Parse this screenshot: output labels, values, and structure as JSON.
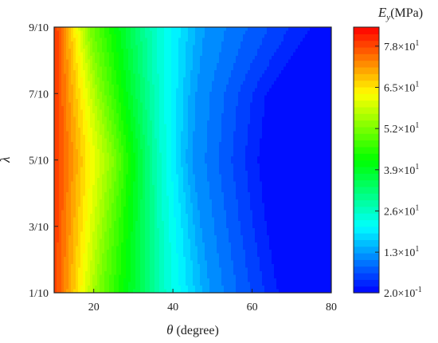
{
  "chart_data": {
    "type": "heatmap",
    "subtype": "filled-contour",
    "x": {
      "symbol": "θ",
      "unit_label": " (degree)",
      "range": [
        10,
        80
      ],
      "ticks": [
        20,
        40,
        60,
        80
      ],
      "tick_labels": [
        "20",
        "40",
        "60",
        "80"
      ]
    },
    "y": {
      "symbol": "λ",
      "range": [
        0.1,
        0.9
      ],
      "ticks": [
        0.1,
        0.3,
        0.5,
        0.7,
        0.9
      ],
      "tick_labels": [
        "1/10",
        "3/10",
        "5/10",
        "7/10",
        "9/10"
      ]
    },
    "z": {
      "symbol": "E",
      "subscript": "y",
      "unit": "(MPa)",
      "range": [
        0.2,
        84
      ],
      "colorbar_ticks": [
        0.2,
        13,
        26,
        39,
        52,
        65,
        78
      ],
      "colorbar_tick_labels": [
        {
          "mantissa": "2.0",
          "exponent": "-1"
        },
        {
          "mantissa": "1.3",
          "exponent": "1"
        },
        {
          "mantissa": "2.6",
          "exponent": "1"
        },
        {
          "mantissa": "3.9",
          "exponent": "1"
        },
        {
          "mantissa": "5.2",
          "exponent": "1"
        },
        {
          "mantissa": "6.5",
          "exponent": "1"
        },
        {
          "mantissa": "7.8",
          "exponent": "1"
        }
      ],
      "levels": 40,
      "colormap": [
        "#0000ff",
        "#00ffff",
        "#00ff00",
        "#ffff00",
        "#ff0000"
      ]
    },
    "contours": [
      {
        "level": 78,
        "points": [
          [
            10.5,
            0.1
          ],
          [
            11.2,
            0.5
          ],
          [
            10.8,
            0.9
          ]
        ]
      },
      {
        "level": 52,
        "points": [
          [
            21.5,
            0.1
          ],
          [
            25.3,
            0.5
          ],
          [
            19,
            0.9
          ]
        ]
      },
      {
        "level": 26,
        "points": [
          [
            37.5,
            0.1
          ],
          [
            36.5,
            0.5
          ],
          [
            35.3,
            0.9
          ]
        ]
      },
      {
        "level": 13,
        "points": [
          [
            49,
            0.1
          ],
          [
            44.5,
            0.5
          ],
          [
            45.5,
            0.7
          ],
          [
            47.5,
            0.9
          ]
        ]
      },
      {
        "level": 2,
        "points": [
          [
            67,
            0.1
          ],
          [
            64,
            0.3
          ],
          [
            62,
            0.5
          ],
          [
            64,
            0.7
          ],
          [
            75.5,
            0.9
          ]
        ]
      }
    ],
    "grid": false,
    "legend": "colorbar-right"
  }
}
